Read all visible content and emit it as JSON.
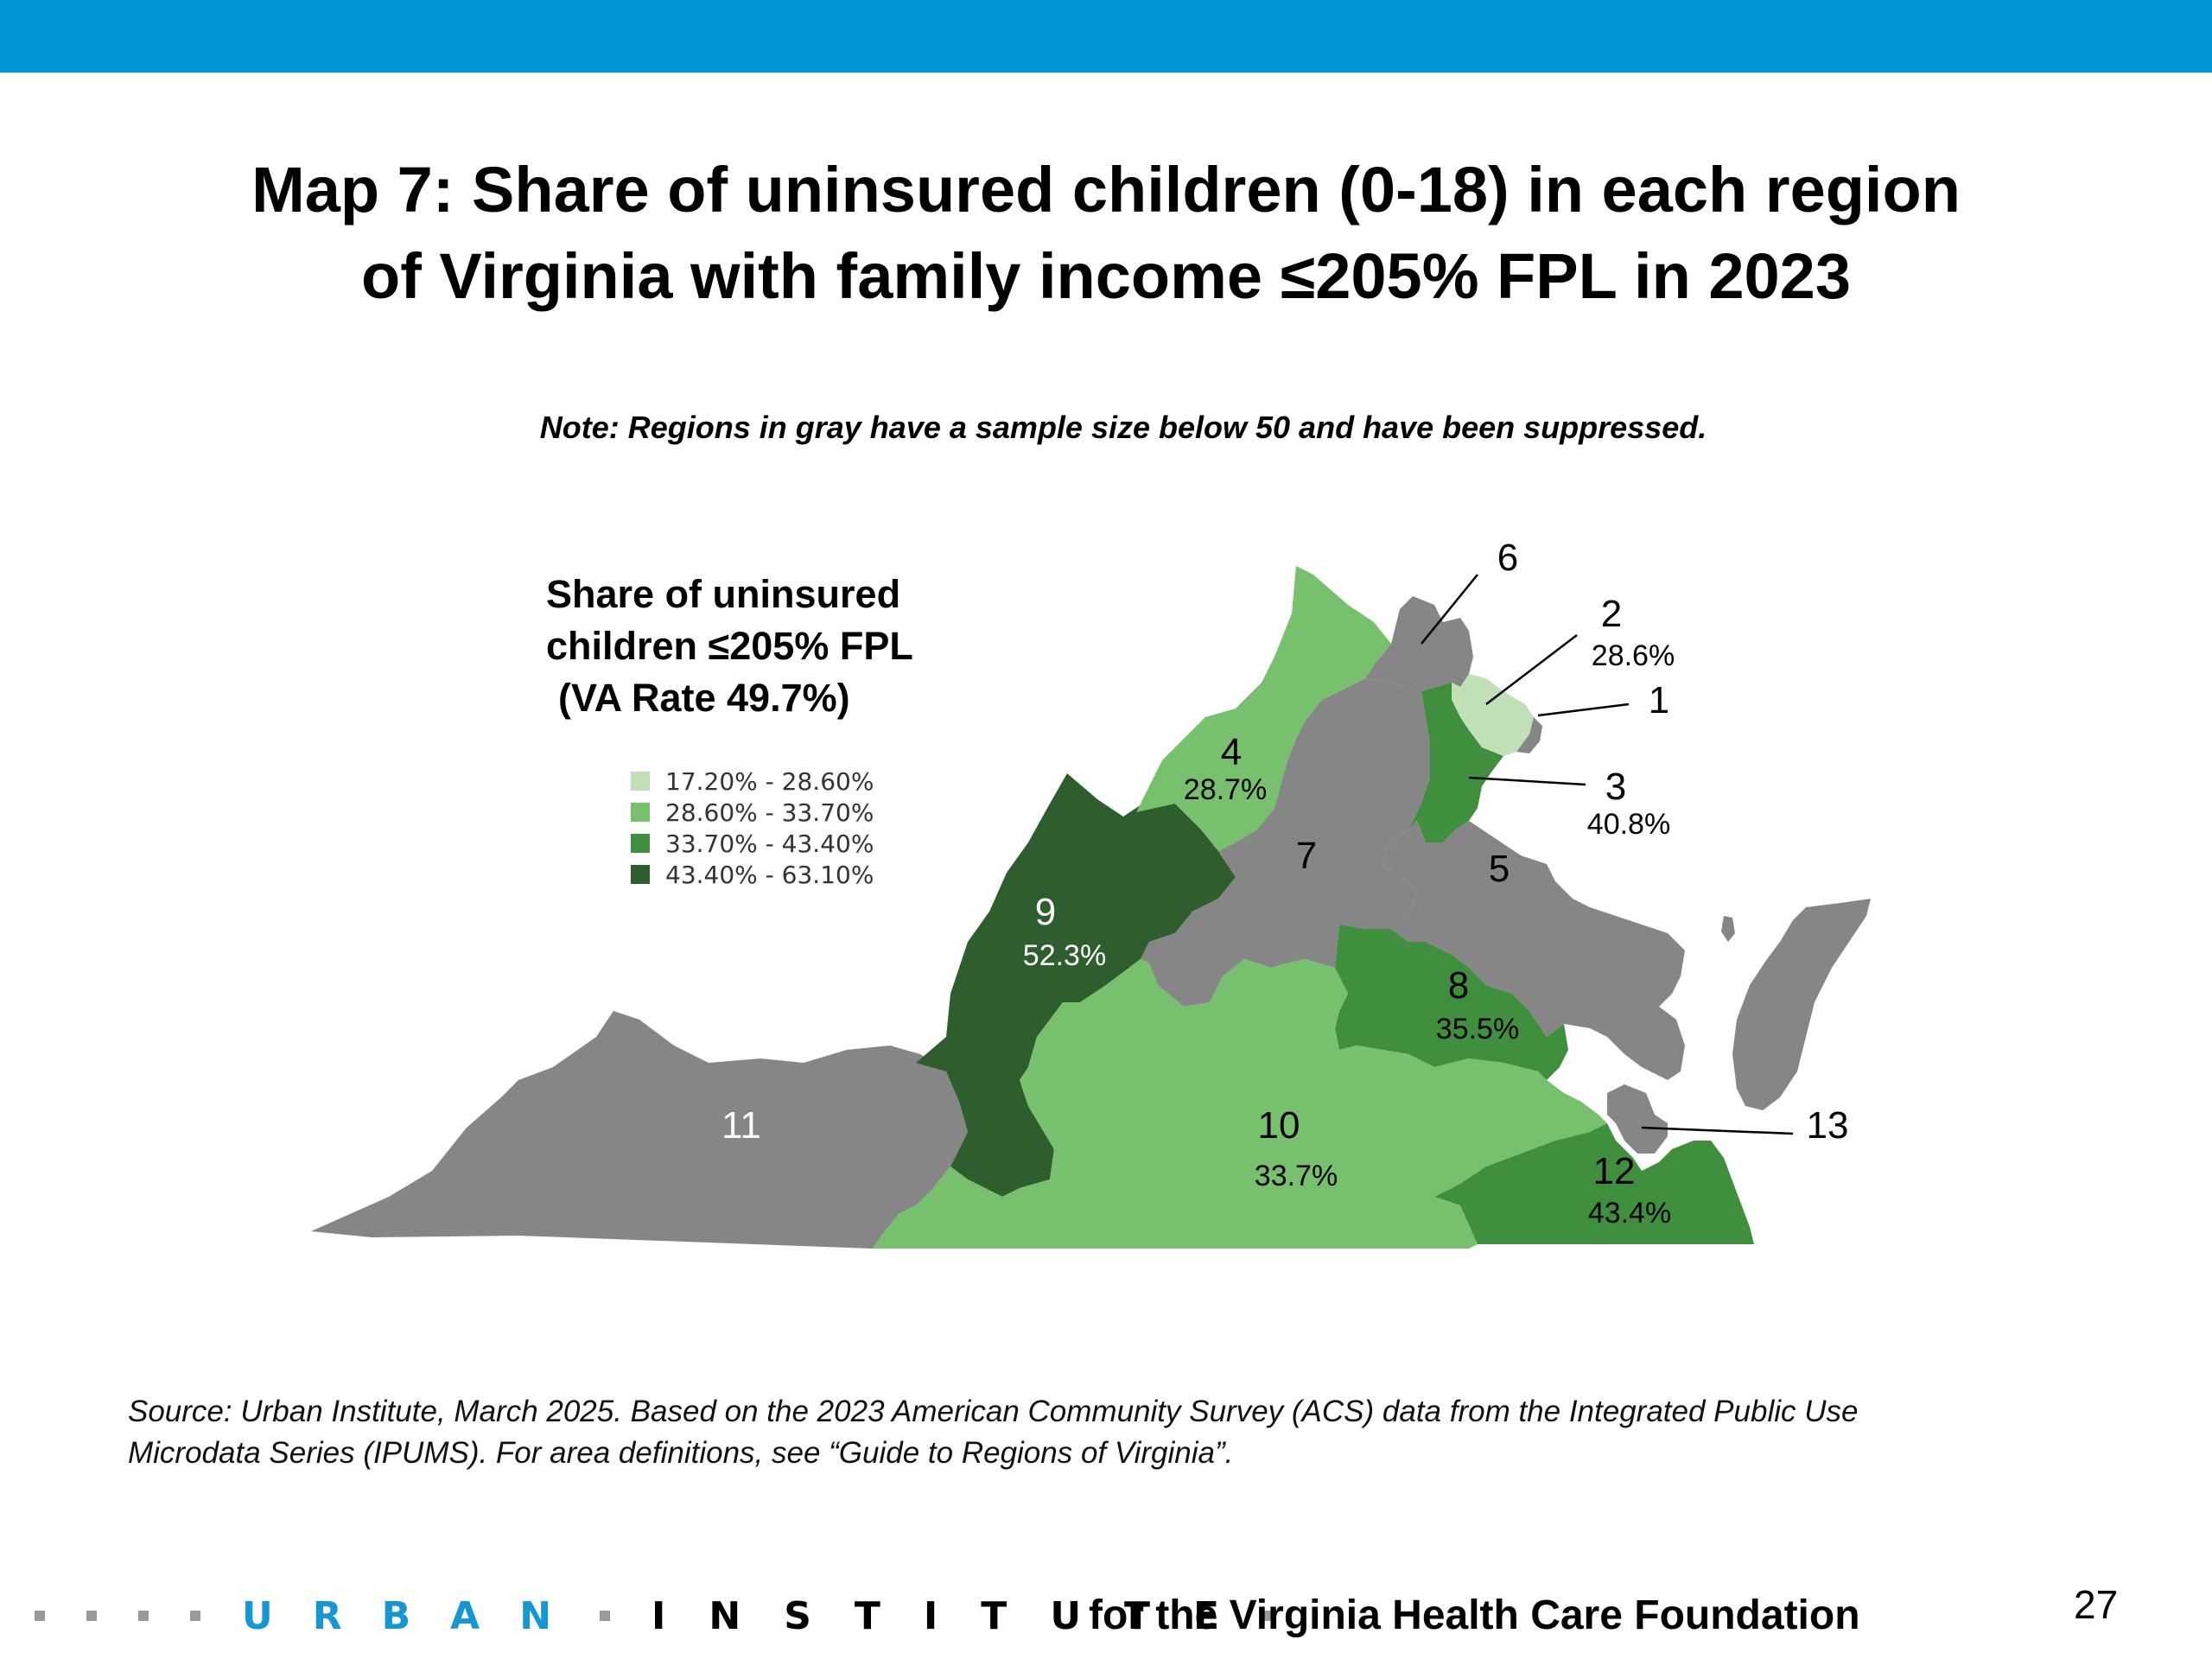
{
  "colors": {
    "top_bar": "#0096D6",
    "suppressed": "#868686",
    "urban_blue": "#1696D2",
    "range_1": "#C1E0B8",
    "range_2": "#77C06D",
    "range_3": "#3F8F3F",
    "range_4": "#2E5E2E"
  },
  "title": {
    "line1": "Map 7: Share of uninsured children (0-18) in each region",
    "line2": "of Virginia with family income ≤205% FPL in 2023"
  },
  "note": {
    "label": "Note",
    "text": ": Regions in gray have a sample size below 50 and have been suppressed."
  },
  "legend": {
    "title_line1": "Share of uninsured",
    "title_line2": "children ≤205% FPL",
    "title_line3": "(VA Rate 49.7%)",
    "items": [
      {
        "label": "17.20% - 28.60%",
        "color": "#C1E0B8"
      },
      {
        "label": "28.60% - 33.70%",
        "color": "#77C06D"
      },
      {
        "label": "33.70% - 43.40%",
        "color": "#3F8F3F"
      },
      {
        "label": "43.40% - 63.10%",
        "color": "#2E5E2E"
      }
    ]
  },
  "regions": {
    "r1": {
      "number": "1",
      "value": ""
    },
    "r2": {
      "number": "2",
      "value": "28.6%"
    },
    "r3": {
      "number": "3",
      "value": "40.8%"
    },
    "r4": {
      "number": "4",
      "value": "28.7%"
    },
    "r5": {
      "number": "5",
      "value": ""
    },
    "r6": {
      "number": "6",
      "value": ""
    },
    "r7": {
      "number": "7",
      "value": ""
    },
    "r8": {
      "number": "8",
      "value": "35.5%"
    },
    "r9": {
      "number": "9",
      "value": "52.3%"
    },
    "r10": {
      "number": "10",
      "value": "33.7%"
    },
    "r11": {
      "number": "11",
      "value": ""
    },
    "r12": {
      "number": "12",
      "value": "43.4%"
    },
    "r13": {
      "number": "13",
      "value": ""
    }
  },
  "source": {
    "line1": "Source: Urban Institute, March 2025. Based on the 2023 American Community Survey (ACS) data from the Integrated Public Use",
    "line2": "Microdata Series (IPUMS). For area definitions, see “Guide to Regions of Virginia”."
  },
  "footer": {
    "logo_urban": "URBAN",
    "logo_institute": "INSTITUTE",
    "tagline": "for the Virginia Health Care Foundation",
    "page_number": "27"
  }
}
